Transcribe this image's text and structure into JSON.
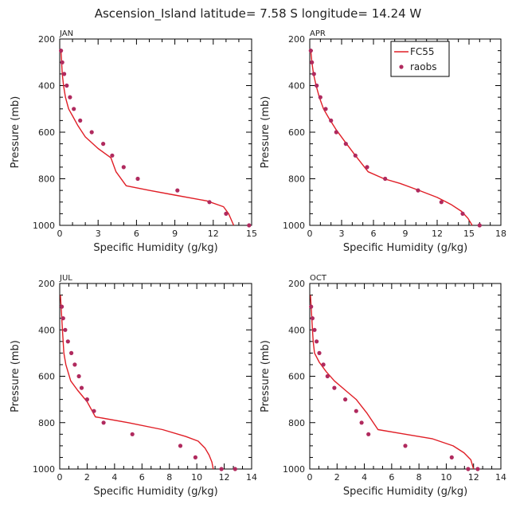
{
  "figure": {
    "title": "Ascension_Island   latitude=  7.58 S  longitude=  14.24 W",
    "legend": {
      "model_label": "FC55",
      "obs_label": "raobs"
    }
  },
  "colors": {
    "model_line": "#e01e26",
    "obs_marker": "#b02a5e",
    "axes": "#000000",
    "text": "#222222"
  },
  "chart_data": [
    {
      "type": "line",
      "panel_label": "JAN",
      "xlabel": "Specific Humidity (g/kg)",
      "ylabel": "Pressure (mb)",
      "xlim": [
        0,
        15
      ],
      "ylim": [
        200,
        1000
      ],
      "y_inverted": false,
      "x_ticks": [
        0,
        3,
        6,
        9,
        12,
        15
      ],
      "y_ticks": [
        200,
        400,
        600,
        800,
        1000
      ],
      "legend": false,
      "series": [
        {
          "name": "FC55",
          "kind": "line",
          "x": [
            0.1,
            0.15,
            0.2,
            0.3,
            0.45,
            0.7,
            1.0,
            1.4,
            2.0,
            3.0,
            4.0,
            4.4,
            5.2,
            7.0,
            9.0,
            11.5,
            12.8,
            13.2,
            13.6
          ],
          "y": [
            250,
            300,
            350,
            400,
            450,
            500,
            530,
            570,
            620,
            670,
            710,
            770,
            830,
            850,
            870,
            895,
            920,
            950,
            1000
          ]
        },
        {
          "name": "raobs",
          "kind": "markers",
          "x": [
            0.1,
            0.2,
            0.35,
            0.55,
            0.8,
            1.1,
            1.6,
            2.5,
            3.4,
            4.1,
            5.0,
            6.1,
            9.2,
            11.7,
            13.0,
            14.8
          ],
          "y": [
            250,
            300,
            350,
            400,
            450,
            500,
            550,
            600,
            650,
            700,
            750,
            800,
            850,
            900,
            950,
            1000
          ]
        }
      ]
    },
    {
      "type": "line",
      "panel_label": "APR",
      "xlabel": "Specific Humidity (g/kg)",
      "ylabel": "Pressure (mb)",
      "xlim": [
        0,
        18
      ],
      "ylim": [
        200,
        1000
      ],
      "y_inverted": false,
      "x_ticks": [
        0,
        3,
        6,
        9,
        12,
        15,
        18
      ],
      "y_ticks": [
        200,
        400,
        600,
        800,
        1000
      ],
      "legend": true,
      "legend_position": "top-right",
      "series": [
        {
          "name": "FC55",
          "kind": "line",
          "x": [
            0.1,
            0.2,
            0.35,
            0.6,
            0.9,
            1.3,
            1.8,
            2.5,
            3.3,
            4.3,
            5.5,
            7.0,
            8.5,
            10.3,
            12.0,
            13.3,
            14.3,
            14.9,
            15.3
          ],
          "y": [
            250,
            300,
            350,
            400,
            450,
            500,
            540,
            590,
            640,
            700,
            770,
            800,
            820,
            850,
            880,
            910,
            940,
            970,
            1000
          ]
        },
        {
          "name": "raobs",
          "kind": "markers",
          "x": [
            0.1,
            0.2,
            0.4,
            0.65,
            1.0,
            1.5,
            2.0,
            2.5,
            3.4,
            4.3,
            5.4,
            7.1,
            10.2,
            12.4,
            14.4,
            16.0
          ],
          "y": [
            250,
            300,
            350,
            400,
            450,
            500,
            550,
            600,
            650,
            700,
            750,
            800,
            850,
            900,
            950,
            1000
          ]
        }
      ]
    },
    {
      "type": "line",
      "panel_label": "JUL",
      "xlabel": "Specific Humidity (g/kg)",
      "ylabel": "Pressure (mb)",
      "xlim": [
        0,
        14
      ],
      "ylim": [
        200,
        1000
      ],
      "y_inverted": false,
      "x_ticks": [
        0,
        2,
        4,
        6,
        8,
        10,
        12,
        14
      ],
      "y_ticks": [
        200,
        400,
        600,
        800,
        1000
      ],
      "legend": false,
      "series": [
        {
          "name": "FC55",
          "kind": "line",
          "x": [
            0.05,
            0.1,
            0.15,
            0.2,
            0.25,
            0.3,
            0.45,
            0.8,
            1.3,
            2.0,
            2.6,
            5.0,
            7.5,
            9.2,
            10.1,
            10.6,
            10.9,
            11.1,
            11.2
          ],
          "y": [
            250,
            300,
            350,
            400,
            450,
            500,
            550,
            620,
            660,
            710,
            775,
            800,
            830,
            860,
            880,
            910,
            940,
            970,
            1000
          ]
        },
        {
          "name": "raobs",
          "kind": "markers",
          "x": [
            0.15,
            0.25,
            0.4,
            0.6,
            0.85,
            1.1,
            1.4,
            1.6,
            2.0,
            2.5,
            3.2,
            5.3,
            8.8,
            9.9,
            11.8,
            12.8
          ],
          "y": [
            300,
            350,
            400,
            450,
            500,
            550,
            600,
            650,
            700,
            750,
            800,
            850,
            900,
            950,
            1000,
            1000
          ]
        }
      ]
    },
    {
      "type": "line",
      "panel_label": "OCT",
      "xlabel": "Specific Humidity (g/kg)",
      "ylabel": "Pressure (mb)",
      "xlim": [
        0,
        14
      ],
      "ylim": [
        200,
        1000
      ],
      "y_inverted": false,
      "x_ticks": [
        0,
        2,
        4,
        6,
        8,
        10,
        12,
        14
      ],
      "y_ticks": [
        200,
        400,
        600,
        800,
        1000
      ],
      "legend": false,
      "series": [
        {
          "name": "FC55",
          "kind": "line",
          "x": [
            0.05,
            0.1,
            0.15,
            0.2,
            0.25,
            0.35,
            0.7,
            1.2,
            1.8,
            2.6,
            3.4,
            4.2,
            5.0,
            7.0,
            9.0,
            10.5,
            11.3,
            11.8,
            12.0
          ],
          "y": [
            250,
            300,
            350,
            400,
            450,
            500,
            540,
            580,
            620,
            660,
            700,
            760,
            830,
            850,
            870,
            900,
            930,
            960,
            1000
          ]
        },
        {
          "name": "raobs",
          "kind": "markers",
          "x": [
            0.1,
            0.2,
            0.35,
            0.5,
            0.7,
            1.0,
            1.3,
            1.8,
            2.6,
            3.4,
            3.8,
            4.3,
            7.0,
            10.4,
            11.6,
            12.3
          ],
          "y": [
            300,
            350,
            400,
            450,
            500,
            550,
            600,
            650,
            700,
            750,
            800,
            850,
            900,
            950,
            1000,
            1000
          ]
        }
      ]
    }
  ]
}
